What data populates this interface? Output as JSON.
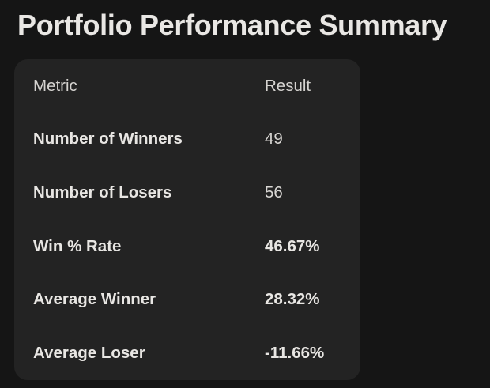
{
  "page": {
    "title": "Portfolio Performance Summary"
  },
  "colors": {
    "background": "#151515",
    "card": "#232323",
    "title_text": "#e9e7e4",
    "header_text": "#d5d3d0",
    "label_text": "#e8e6e3",
    "value_text": "#d8d6d3"
  },
  "table": {
    "headers": {
      "metric": "Metric",
      "result": "Result"
    },
    "rows": [
      {
        "metric": "Number of Winners",
        "result": "49"
      },
      {
        "metric": "Number of Losers",
        "result": "56"
      },
      {
        "metric": "Win % Rate",
        "result": "46.67%"
      },
      {
        "metric": "Average Winner",
        "result": "28.32%"
      },
      {
        "metric": "Average Loser",
        "result": "-11.66%"
      }
    ]
  }
}
